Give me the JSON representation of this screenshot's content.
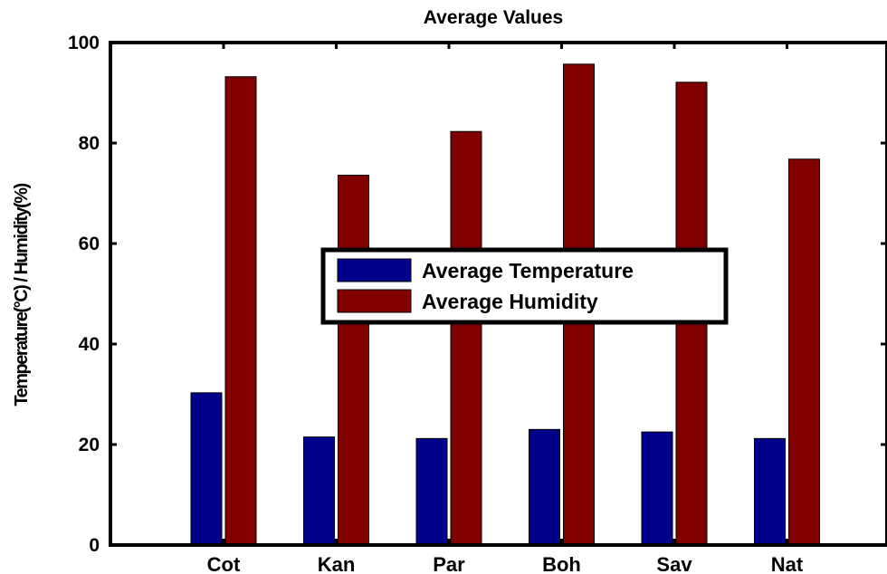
{
  "chart_data": {
    "type": "bar",
    "title": "Average Values",
    "xlabel": "",
    "ylabel": "Temperature(°C) / Humidity(%)",
    "categories": [
      "Cot",
      "Kan",
      "Par",
      "Boh",
      "Sav",
      "Nat"
    ],
    "series": [
      {
        "name": "Average Temperature",
        "color": "#00008b",
        "values": [
          30.3,
          21.5,
          21.2,
          23.0,
          22.5,
          21.2
        ]
      },
      {
        "name": "Average Humidity",
        "color": "#800000",
        "values": [
          93.2,
          73.6,
          82.3,
          95.7,
          92.1,
          76.8
        ]
      }
    ],
    "ylim": [
      0,
      100
    ],
    "yticks": [
      "0",
      "20",
      "40",
      "60",
      "80",
      "100"
    ],
    "grid": false,
    "legend": "center"
  }
}
